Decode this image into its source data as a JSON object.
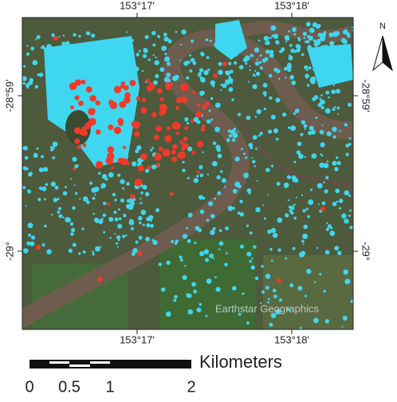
{
  "map": {
    "top_labels": [
      "153°17'",
      "153°18'"
    ],
    "bottom_labels": [
      "153°17'",
      "153°18'"
    ],
    "left_labels": [
      "-28°59'",
      "-29°"
    ],
    "right_labels": [
      "-28°59'",
      "-29°"
    ],
    "north": "N",
    "attribution": "Earthstar Geographics",
    "scale_bar": {
      "unit": "Kilometers",
      "labels": [
        "0",
        "0.5",
        "1",
        "2"
      ]
    }
  }
}
